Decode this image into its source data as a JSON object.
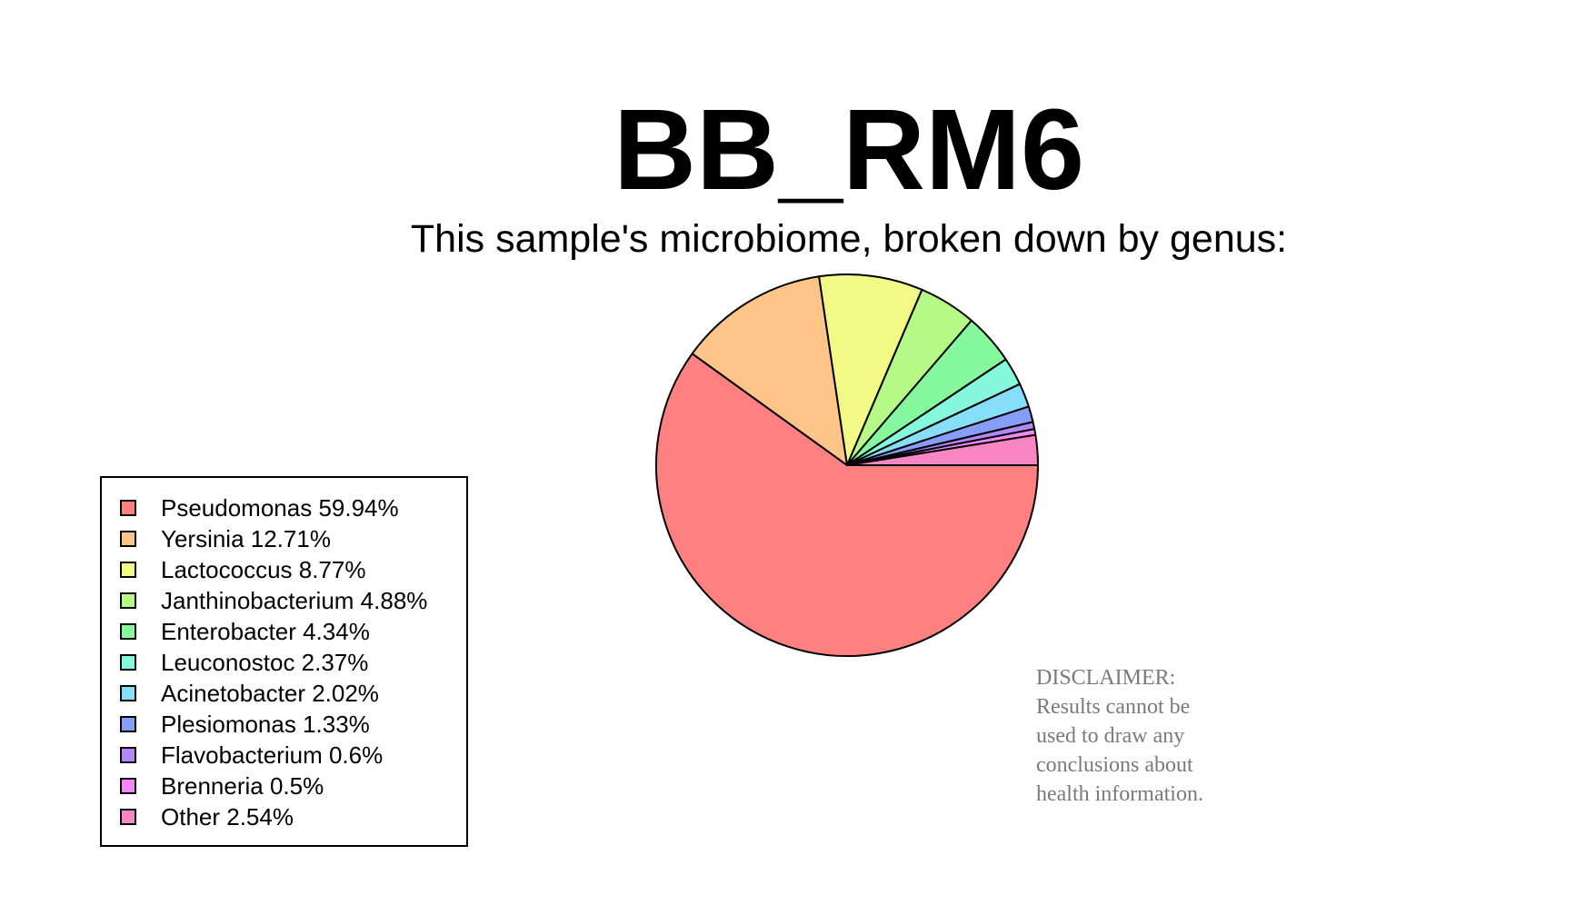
{
  "chart_data": {
    "type": "pie",
    "title": "BB_RM6",
    "subtitle": "This sample's microbiome, broken down by genus:",
    "slices": [
      {
        "label": "Pseudomonas 59.94%",
        "value": 59.94,
        "color": "#ff8080"
      },
      {
        "label": "Yersinia 12.71%",
        "value": 12.71,
        "color": "#ffc488"
      },
      {
        "label": "Lactococcus 8.77%",
        "value": 8.77,
        "color": "#f2f984"
      },
      {
        "label": "Janthinobacterium 4.88%",
        "value": 4.88,
        "color": "#b5f986"
      },
      {
        "label": "Enterobacter 4.34%",
        "value": 4.34,
        "color": "#86f99f"
      },
      {
        "label": "Leuconostoc 2.37%",
        "value": 2.37,
        "color": "#86f9dd"
      },
      {
        "label": "Acinetobacter 2.02%",
        "value": 2.02,
        "color": "#86def9"
      },
      {
        "label": "Plesiomonas 1.33%",
        "value": 1.33,
        "color": "#869ef9"
      },
      {
        "label": "Flavobacterium 0.6%",
        "value": 0.6,
        "color": "#b386f9"
      },
      {
        "label": "Brenneria 0.5%",
        "value": 0.5,
        "color": "#f386f9"
      },
      {
        "label": "Other 2.54%",
        "value": 2.54,
        "color": "#f986c4"
      }
    ],
    "legend_position": "bottom-left"
  },
  "disclaimer": {
    "lines": [
      "DISCLAIMER:",
      "Results cannot be",
      "used to draw any",
      "conclusions about",
      "health information."
    ]
  }
}
